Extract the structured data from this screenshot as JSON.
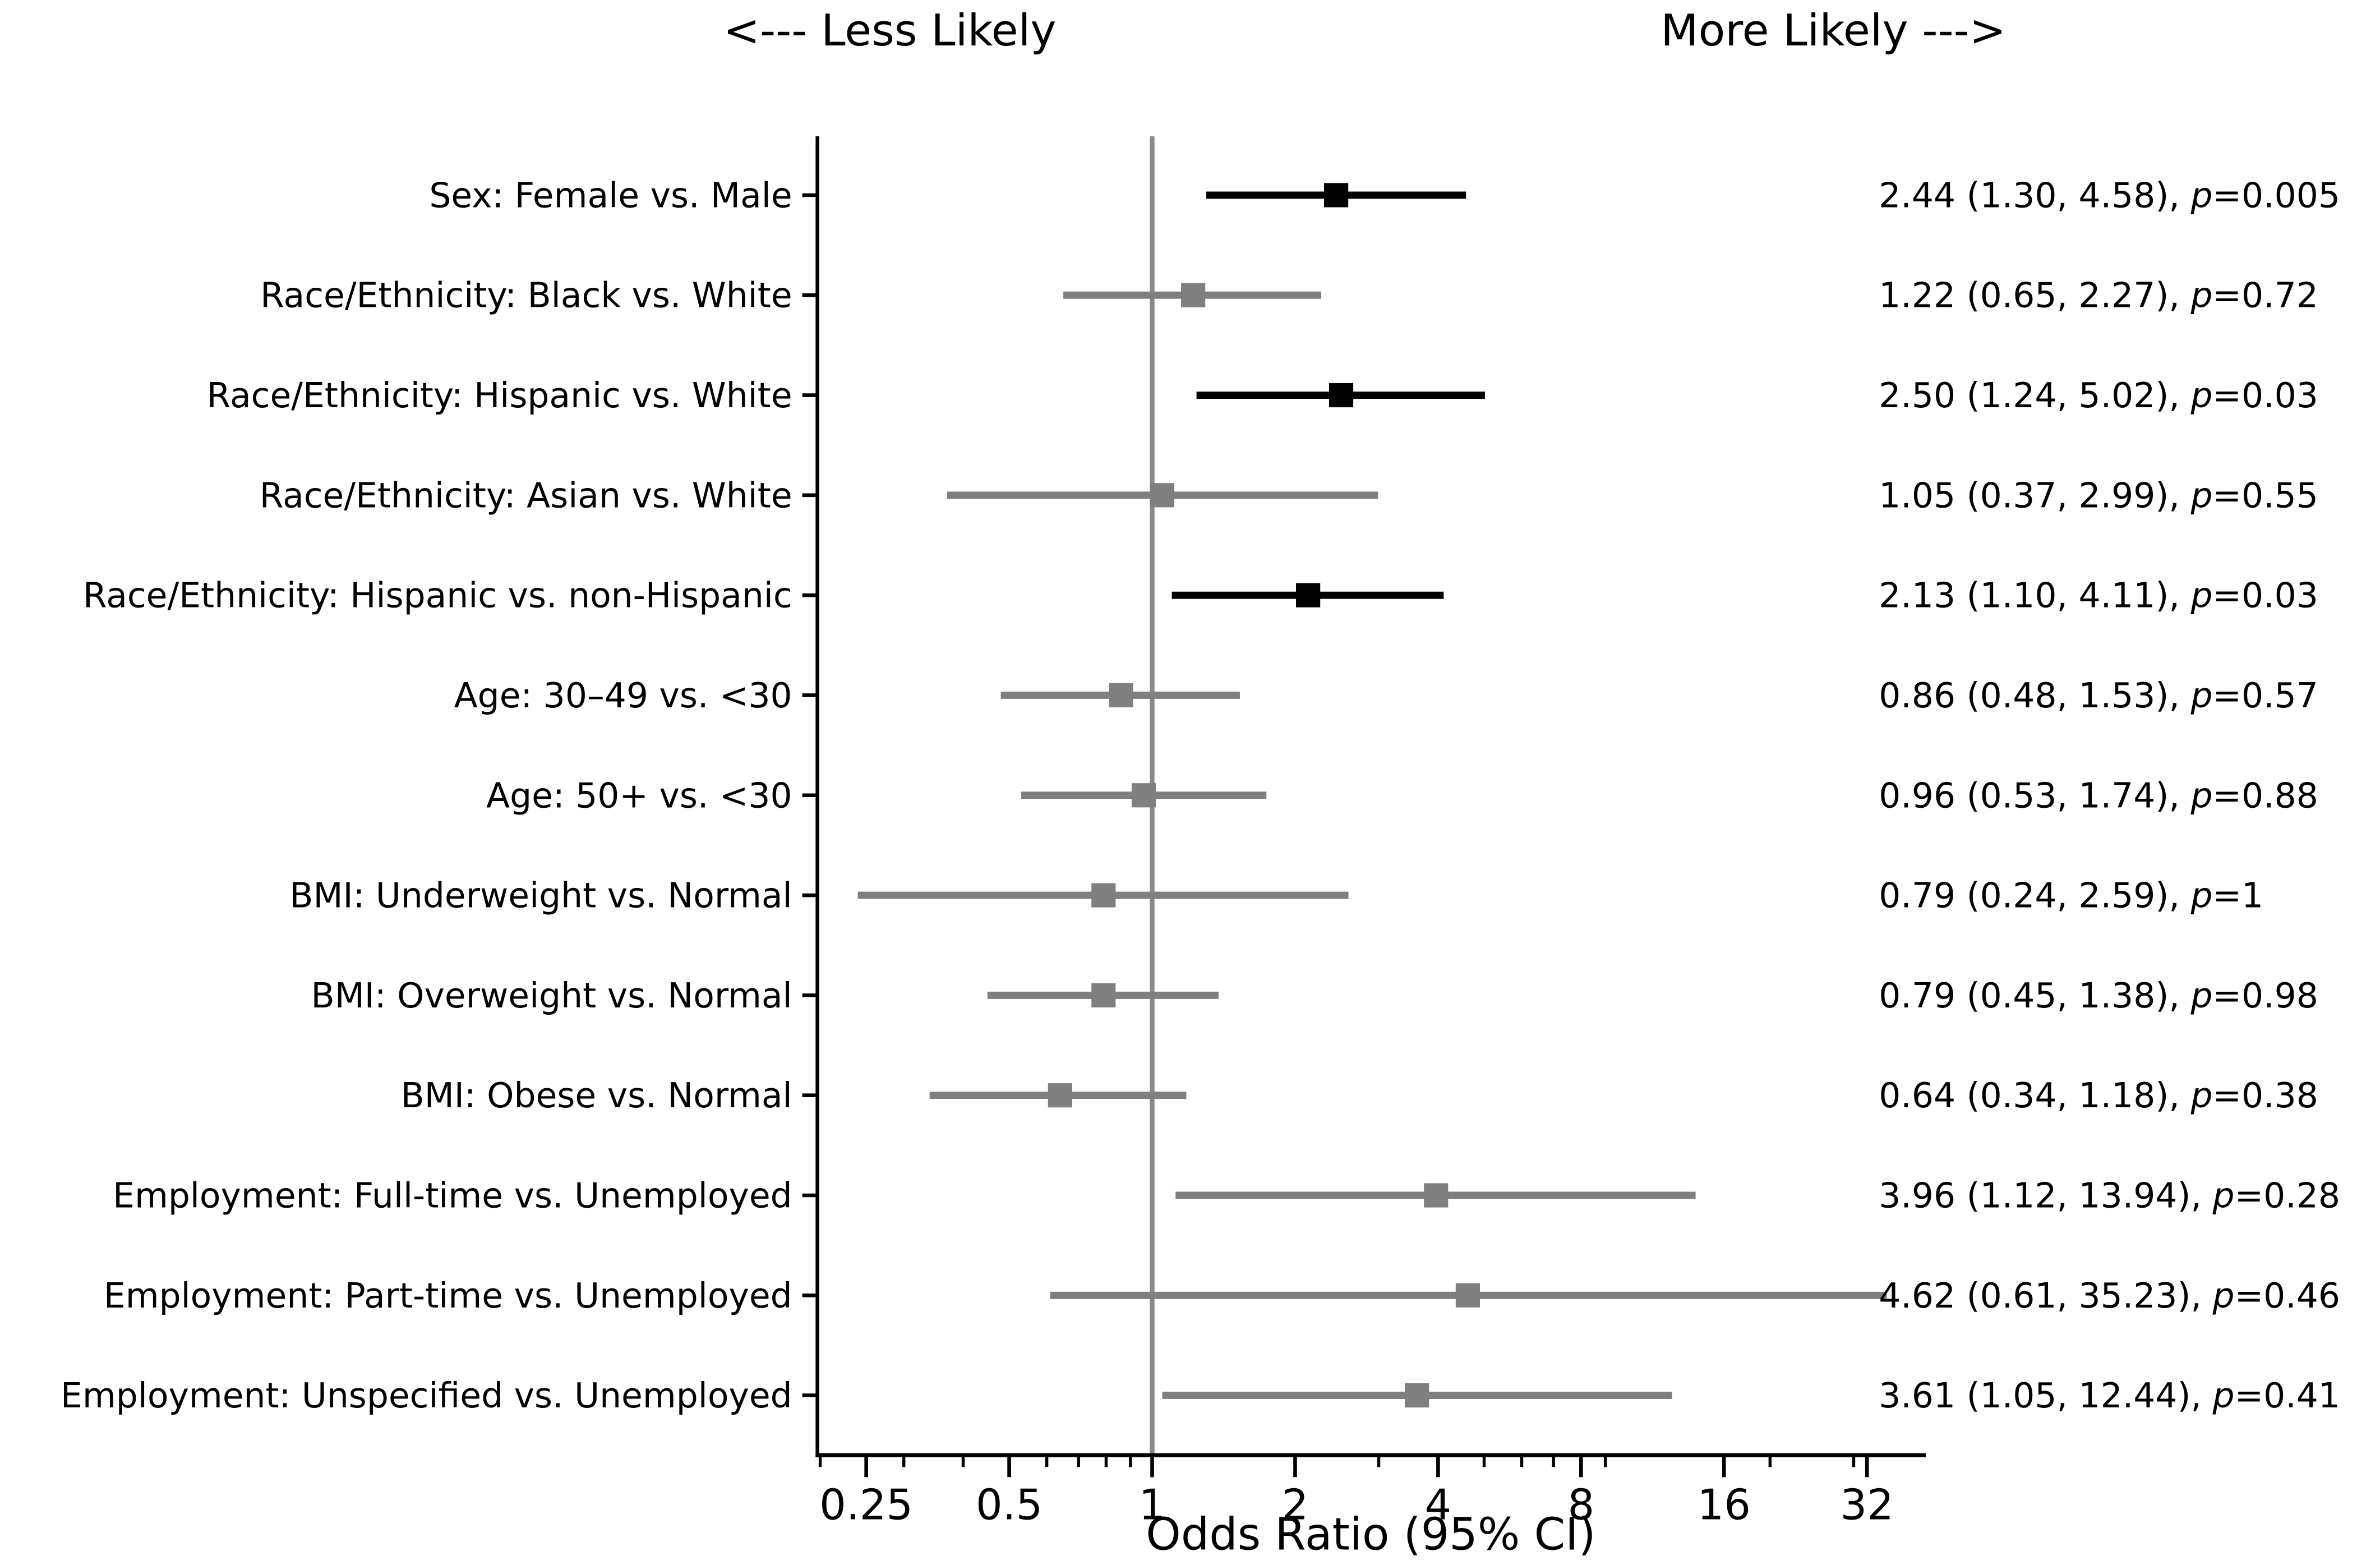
{
  "figure": {
    "direction_label_left": "<--- Less Likely",
    "direction_label_right": "More Likely --->"
  },
  "chart_data": {
    "type": "scatter",
    "subtype": "forest-plot",
    "title": "",
    "xlabel": "Odds Ratio (95% CI)",
    "ylabel": "",
    "xscale": "log2",
    "xlim": [
      0.2,
      41
    ],
    "grid": false,
    "legend": "none",
    "reference_line_x": 1,
    "x_major_ticks": [
      0.25,
      0.5,
      1,
      2,
      4,
      8,
      16,
      32
    ],
    "x_major_tick_labels": [
      "0.25",
      "0.5",
      "1",
      "2",
      "4",
      "8",
      "16",
      "32"
    ],
    "x_minor_ticks": [
      0.2,
      0.3,
      0.4,
      0.6,
      0.7,
      0.8,
      0.9,
      3,
      5,
      6,
      7,
      9,
      20,
      30
    ],
    "colors": {
      "significant": "#000000",
      "not_significant": "#7f7f7f",
      "reference_line": "#8a8a8a",
      "axis": "#000000",
      "text": "#000000"
    },
    "rows": [
      {
        "label": "Sex: Female vs. Male",
        "or": 2.44,
        "ci_low": 1.3,
        "ci_high": 4.58,
        "p": "0.005",
        "significant": true,
        "annotation": "2.44 (1.30, 4.58), p=0.005"
      },
      {
        "label": "Race/Ethnicity: Black vs. White",
        "or": 1.22,
        "ci_low": 0.65,
        "ci_high": 2.27,
        "p": "0.72",
        "significant": false,
        "annotation": "1.22 (0.65, 2.27), p=0.72"
      },
      {
        "label": "Race/Ethnicity: Hispanic vs. White",
        "or": 2.5,
        "ci_low": 1.24,
        "ci_high": 5.02,
        "p": "0.03",
        "significant": true,
        "annotation": "2.50 (1.24, 5.02), p=0.03"
      },
      {
        "label": "Race/Ethnicity: Asian vs. White",
        "or": 1.05,
        "ci_low": 0.37,
        "ci_high": 2.99,
        "p": "0.55",
        "significant": false,
        "annotation": "1.05 (0.37, 2.99), p=0.55"
      },
      {
        "label": "Race/Ethnicity: Hispanic vs. non-Hispanic",
        "or": 2.13,
        "ci_low": 1.1,
        "ci_high": 4.11,
        "p": "0.03",
        "significant": true,
        "annotation": "2.13 (1.10, 4.11), p=0.03"
      },
      {
        "label": "Age: 30–49 vs. <30",
        "or": 0.86,
        "ci_low": 0.48,
        "ci_high": 1.53,
        "p": "0.57",
        "significant": false,
        "annotation": "0.86 (0.48, 1.53), p=0.57"
      },
      {
        "label": "Age: 50+ vs. <30",
        "or": 0.96,
        "ci_low": 0.53,
        "ci_high": 1.74,
        "p": "0.88",
        "significant": false,
        "annotation": "0.96 (0.53, 1.74), p=0.88"
      },
      {
        "label": "BMI: Underweight vs. Normal",
        "or": 0.79,
        "ci_low": 0.24,
        "ci_high": 2.59,
        "p": "1",
        "significant": false,
        "annotation": "0.79 (0.24, 2.59), p=1"
      },
      {
        "label": "BMI: Overweight vs. Normal",
        "or": 0.79,
        "ci_low": 0.45,
        "ci_high": 1.38,
        "p": "0.98",
        "significant": false,
        "annotation": "0.79 (0.45, 1.38), p=0.98"
      },
      {
        "label": "BMI: Obese vs. Normal",
        "or": 0.64,
        "ci_low": 0.34,
        "ci_high": 1.18,
        "p": "0.38",
        "significant": false,
        "annotation": "0.64 (0.34, 1.18), p=0.38"
      },
      {
        "label": "Employment: Full-time vs. Unemployed",
        "or": 3.96,
        "ci_low": 1.12,
        "ci_high": 13.94,
        "p": "0.28",
        "significant": false,
        "annotation": "3.96 (1.12, 13.94), p=0.28"
      },
      {
        "label": "Employment: Part-time vs. Unemployed",
        "or": 4.62,
        "ci_low": 0.61,
        "ci_high": 35.23,
        "p": "0.46",
        "significant": false,
        "annotation": "4.62 (0.61, 35.23), p=0.46"
      },
      {
        "label": "Employment: Unspecified vs. Unemployed",
        "or": 3.61,
        "ci_low": 1.05,
        "ci_high": 12.44,
        "p": "0.41",
        "significant": false,
        "annotation": "3.61 (1.05, 12.44), p=0.41"
      }
    ]
  }
}
